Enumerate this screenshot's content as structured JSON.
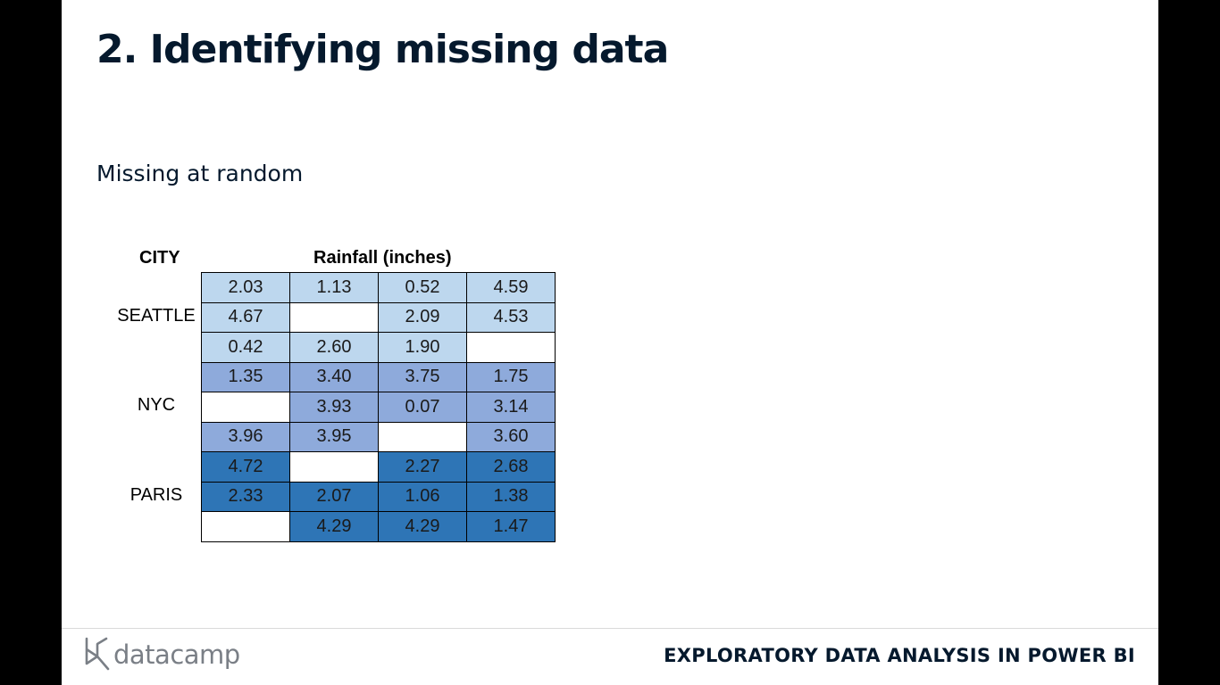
{
  "slide": {
    "title": "2. Identifying missing data",
    "subtitle": "Missing at random",
    "footer_brand": "datacamp",
    "footer_course": "EXPLORATORY DATA ANALYSIS IN POWER BI"
  },
  "table": {
    "city_header": "CITY",
    "rainfall_header": "Rainfall (inches)",
    "colors": {
      "SEATTLE": "#bdd7ee",
      "NYC": "#8eaadb",
      "PARIS": "#2e75b6",
      "missing": "#ffffff"
    },
    "groups": [
      {
        "city": "SEATTLE",
        "rows": [
          [
            "2.03",
            "1.13",
            "0.52",
            "4.59"
          ],
          [
            "4.67",
            "",
            "2.09",
            "4.53"
          ],
          [
            "0.42",
            "2.60",
            "1.90",
            ""
          ]
        ]
      },
      {
        "city": "NYC",
        "rows": [
          [
            "1.35",
            "3.40",
            "3.75",
            "1.75"
          ],
          [
            "",
            "3.93",
            "0.07",
            "3.14"
          ],
          [
            "3.96",
            "3.95",
            "",
            "3.60"
          ]
        ]
      },
      {
        "city": "PARIS",
        "rows": [
          [
            "4.72",
            "",
            "2.27",
            "2.68"
          ],
          [
            "2.33",
            "2.07",
            "1.06",
            "1.38"
          ],
          [
            "",
            "4.29",
            "4.29",
            "1.47"
          ]
        ]
      }
    ]
  }
}
